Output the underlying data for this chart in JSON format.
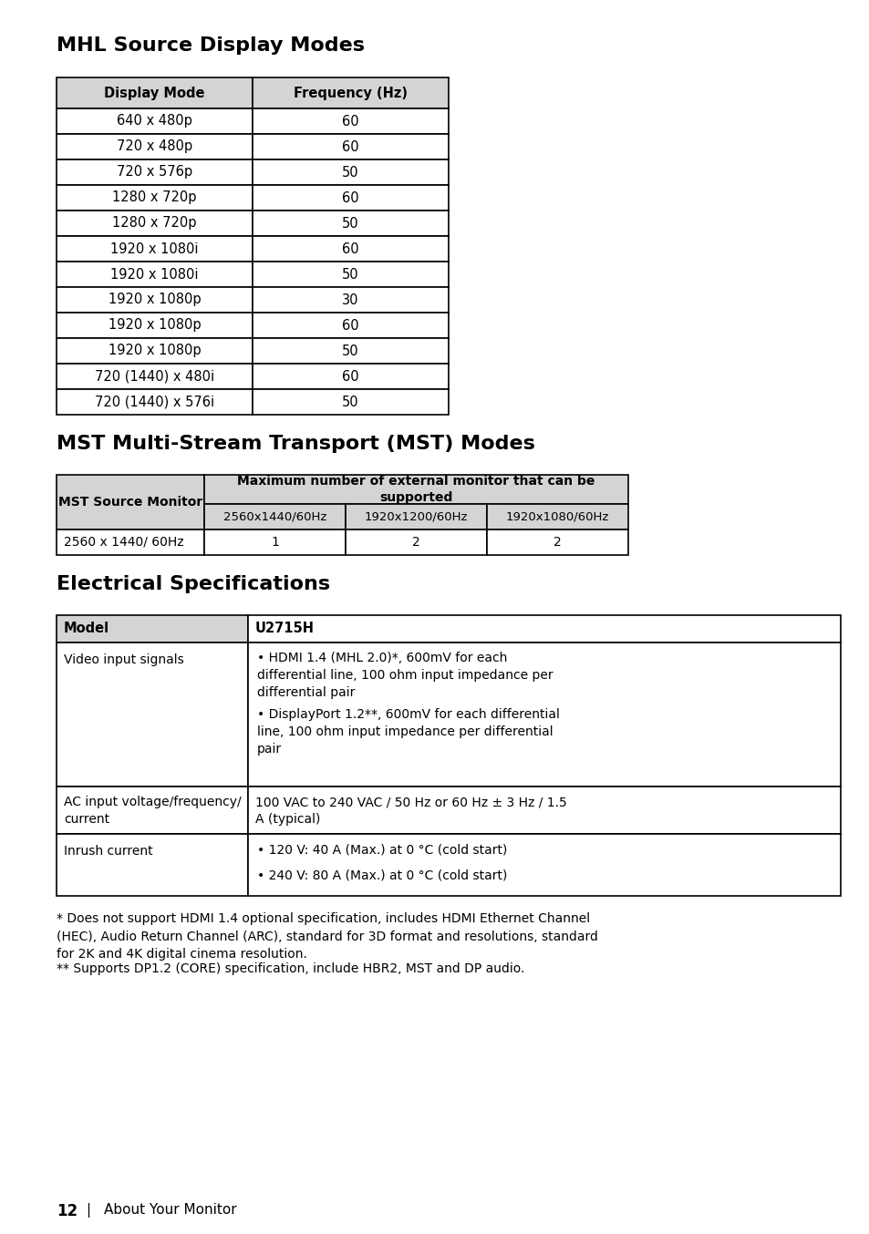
{
  "bg_color": "#ffffff",
  "section1_title": "MHL Source Display Modes",
  "mhl_table_headers": [
    "Display Mode",
    "Frequency (Hz)"
  ],
  "mhl_table_rows": [
    [
      "640 x 480p",
      "60"
    ],
    [
      "720 x 480p",
      "60"
    ],
    [
      "720 x 576p",
      "50"
    ],
    [
      "1280 x 720p",
      "60"
    ],
    [
      "1280 x 720p",
      "50"
    ],
    [
      "1920 x 1080i",
      "60"
    ],
    [
      "1920 x 1080i",
      "50"
    ],
    [
      "1920 x 1080p",
      "30"
    ],
    [
      "1920 x 1080p",
      "60"
    ],
    [
      "1920 x 1080p",
      "50"
    ],
    [
      "720 (1440) x 480i",
      "60"
    ],
    [
      "720 (1440) x 576i",
      "50"
    ]
  ],
  "section2_title": "MST Multi-Stream Transport (MST) Modes",
  "mst_col0_header": "MST Source Monitor",
  "mst_merged_header": "Maximum number of external monitor that can be\nsupported",
  "mst_sub_headers": [
    "2560x1440/60Hz",
    "1920x1200/60Hz",
    "1920x1080/60Hz"
  ],
  "mst_data_row": [
    "2560 x 1440/ 60Hz",
    "1",
    "2",
    "2"
  ],
  "section3_title": "Electrical Specifications",
  "elec_header": [
    "Model",
    "U2715H"
  ],
  "elec_rows": [
    {
      "col0": "Video input signals",
      "col1_bullets": [
        "HDMI 1.4 (MHL 2.0)*, 600mV for each\ndifferential line, 100 ohm input impedance per\ndifferential pair",
        "DisplayPort 1.2**, 600mV for each differential\nline, 100 ohm input impedance per differential\npair"
      ]
    },
    {
      "col0": "AC input voltage/frequency/\ncurrent",
      "col1_text": "100 VAC to 240 VAC / 50 Hz or 60 Hz ± 3 Hz / 1.5\nA (typical)"
    },
    {
      "col0": "Inrush current",
      "col1_bullets": [
        "120 V: 40 A (Max.) at 0 °C (cold start)",
        "240 V: 80 A (Max.) at 0 °C (cold start)"
      ]
    }
  ],
  "footnote1": "* Does not support HDMI 1.4 optional specification, includes HDMI Ethernet Channel\n(HEC), Audio Return Channel (ARC), standard for 3D format and resolutions, standard\nfor 2K and 4K digital cinema resolution.",
  "footnote2": "** Supports DP1.2 (CORE) specification, include HBR2, MST and DP audio.",
  "footer_num": "12",
  "footer_sep": "|",
  "footer_label": "About Your Monitor",
  "header_bg": "#d4d4d4",
  "border_color": "#000000"
}
